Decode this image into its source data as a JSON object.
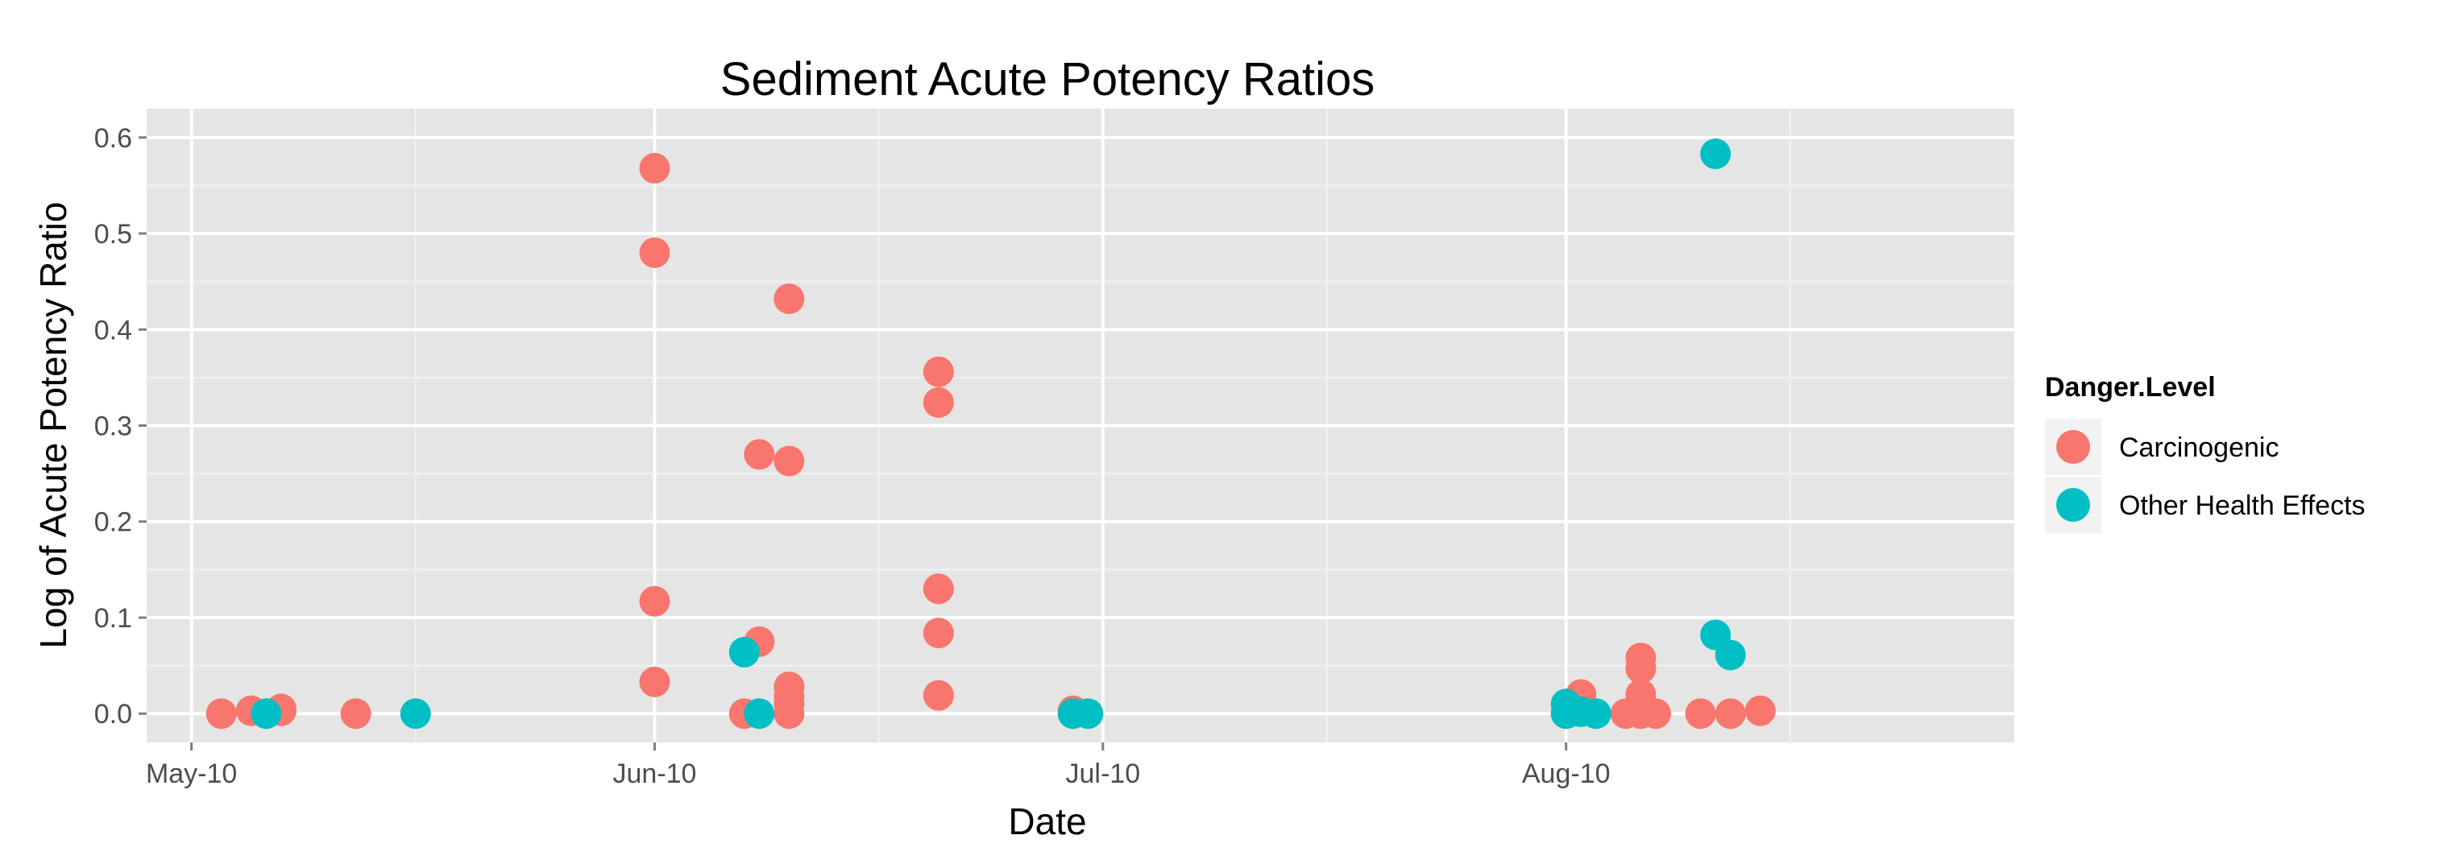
{
  "chart_data": {
    "type": "scatter",
    "title": "Sediment Acute Potency Ratios",
    "xlabel": "Date",
    "ylabel": "Log of Acute Potency Ratio",
    "x_axis_type": "date",
    "xlim": [
      "2010-04-28",
      "2010-08-31"
    ],
    "ylim": [
      -0.03,
      0.63
    ],
    "x_major_ticks": [
      {
        "date": "2010-05-01",
        "label": "May-10"
      },
      {
        "date": "2010-06-01",
        "label": "Jun-10"
      },
      {
        "date": "2010-07-01",
        "label": "Jul-10"
      },
      {
        "date": "2010-08-01",
        "label": "Aug-10"
      }
    ],
    "x_minor_ticks": [
      "2010-05-16",
      "2010-06-16",
      "2010-07-16",
      "2010-08-16"
    ],
    "y_major_ticks": [
      {
        "value": 0.0,
        "label": "0.0"
      },
      {
        "value": 0.1,
        "label": "0.1"
      },
      {
        "value": 0.2,
        "label": "0.2"
      },
      {
        "value": 0.3,
        "label": "0.3"
      },
      {
        "value": 0.4,
        "label": "0.4"
      },
      {
        "value": 0.5,
        "label": "0.5"
      },
      {
        "value": 0.6,
        "label": "0.6"
      }
    ],
    "y_minor_ticks": [
      0.05,
      0.15,
      0.25,
      0.35,
      0.45,
      0.55
    ],
    "grid": true,
    "legend": {
      "title": "Danger.Level",
      "position": "right"
    },
    "series": [
      {
        "name": "Carcinogenic",
        "color": "#F8766D",
        "points": [
          {
            "x": "2010-05-03",
            "y": 0.0
          },
          {
            "x": "2010-05-05",
            "y": 0.003
          },
          {
            "x": "2010-05-07",
            "y": 0.003
          },
          {
            "x": "2010-05-07",
            "y": 0.005
          },
          {
            "x": "2010-05-12",
            "y": 0.0
          },
          {
            "x": "2010-06-01",
            "y": 0.568
          },
          {
            "x": "2010-06-01",
            "y": 0.48
          },
          {
            "x": "2010-06-01",
            "y": 0.117
          },
          {
            "x": "2010-06-01",
            "y": 0.033
          },
          {
            "x": "2010-06-07",
            "y": 0.0
          },
          {
            "x": "2010-06-08",
            "y": 0.27
          },
          {
            "x": "2010-06-08",
            "y": 0.075
          },
          {
            "x": "2010-06-10",
            "y": 0.432
          },
          {
            "x": "2010-06-10",
            "y": 0.263
          },
          {
            "x": "2010-06-10",
            "y": 0.028
          },
          {
            "x": "2010-06-10",
            "y": 0.018
          },
          {
            "x": "2010-06-10",
            "y": 0.01
          },
          {
            "x": "2010-06-10",
            "y": 0.0
          },
          {
            "x": "2010-06-20",
            "y": 0.356
          },
          {
            "x": "2010-06-20",
            "y": 0.324
          },
          {
            "x": "2010-06-20",
            "y": 0.13
          },
          {
            "x": "2010-06-20",
            "y": 0.084
          },
          {
            "x": "2010-06-20",
            "y": 0.019
          },
          {
            "x": "2010-06-29",
            "y": 0.003
          },
          {
            "x": "2010-08-02",
            "y": 0.02
          },
          {
            "x": "2010-08-05",
            "y": 0.0
          },
          {
            "x": "2010-08-06",
            "y": 0.058
          },
          {
            "x": "2010-08-06",
            "y": 0.047
          },
          {
            "x": "2010-08-06",
            "y": 0.02
          },
          {
            "x": "2010-08-06",
            "y": 0.005
          },
          {
            "x": "2010-08-06",
            "y": 0.0
          },
          {
            "x": "2010-08-07",
            "y": 0.0
          },
          {
            "x": "2010-08-10",
            "y": 0.0
          },
          {
            "x": "2010-08-12",
            "y": 0.0
          },
          {
            "x": "2010-08-14",
            "y": 0.003
          }
        ]
      },
      {
        "name": "Other Health Effects",
        "color": "#00BFC4",
        "points": [
          {
            "x": "2010-05-06",
            "y": 0.0
          },
          {
            "x": "2010-05-16",
            "y": 0.0
          },
          {
            "x": "2010-06-07",
            "y": 0.064
          },
          {
            "x": "2010-06-08",
            "y": 0.0
          },
          {
            "x": "2010-06-29",
            "y": 0.0
          },
          {
            "x": "2010-06-30",
            "y": 0.0
          },
          {
            "x": "2010-08-01",
            "y": 0.01
          },
          {
            "x": "2010-08-01",
            "y": 0.0
          },
          {
            "x": "2010-08-02",
            "y": 0.002
          },
          {
            "x": "2010-08-03",
            "y": 0.0
          },
          {
            "x": "2010-08-11",
            "y": 0.583
          },
          {
            "x": "2010-08-11",
            "y": 0.082
          },
          {
            "x": "2010-08-12",
            "y": 0.061
          }
        ]
      }
    ]
  }
}
